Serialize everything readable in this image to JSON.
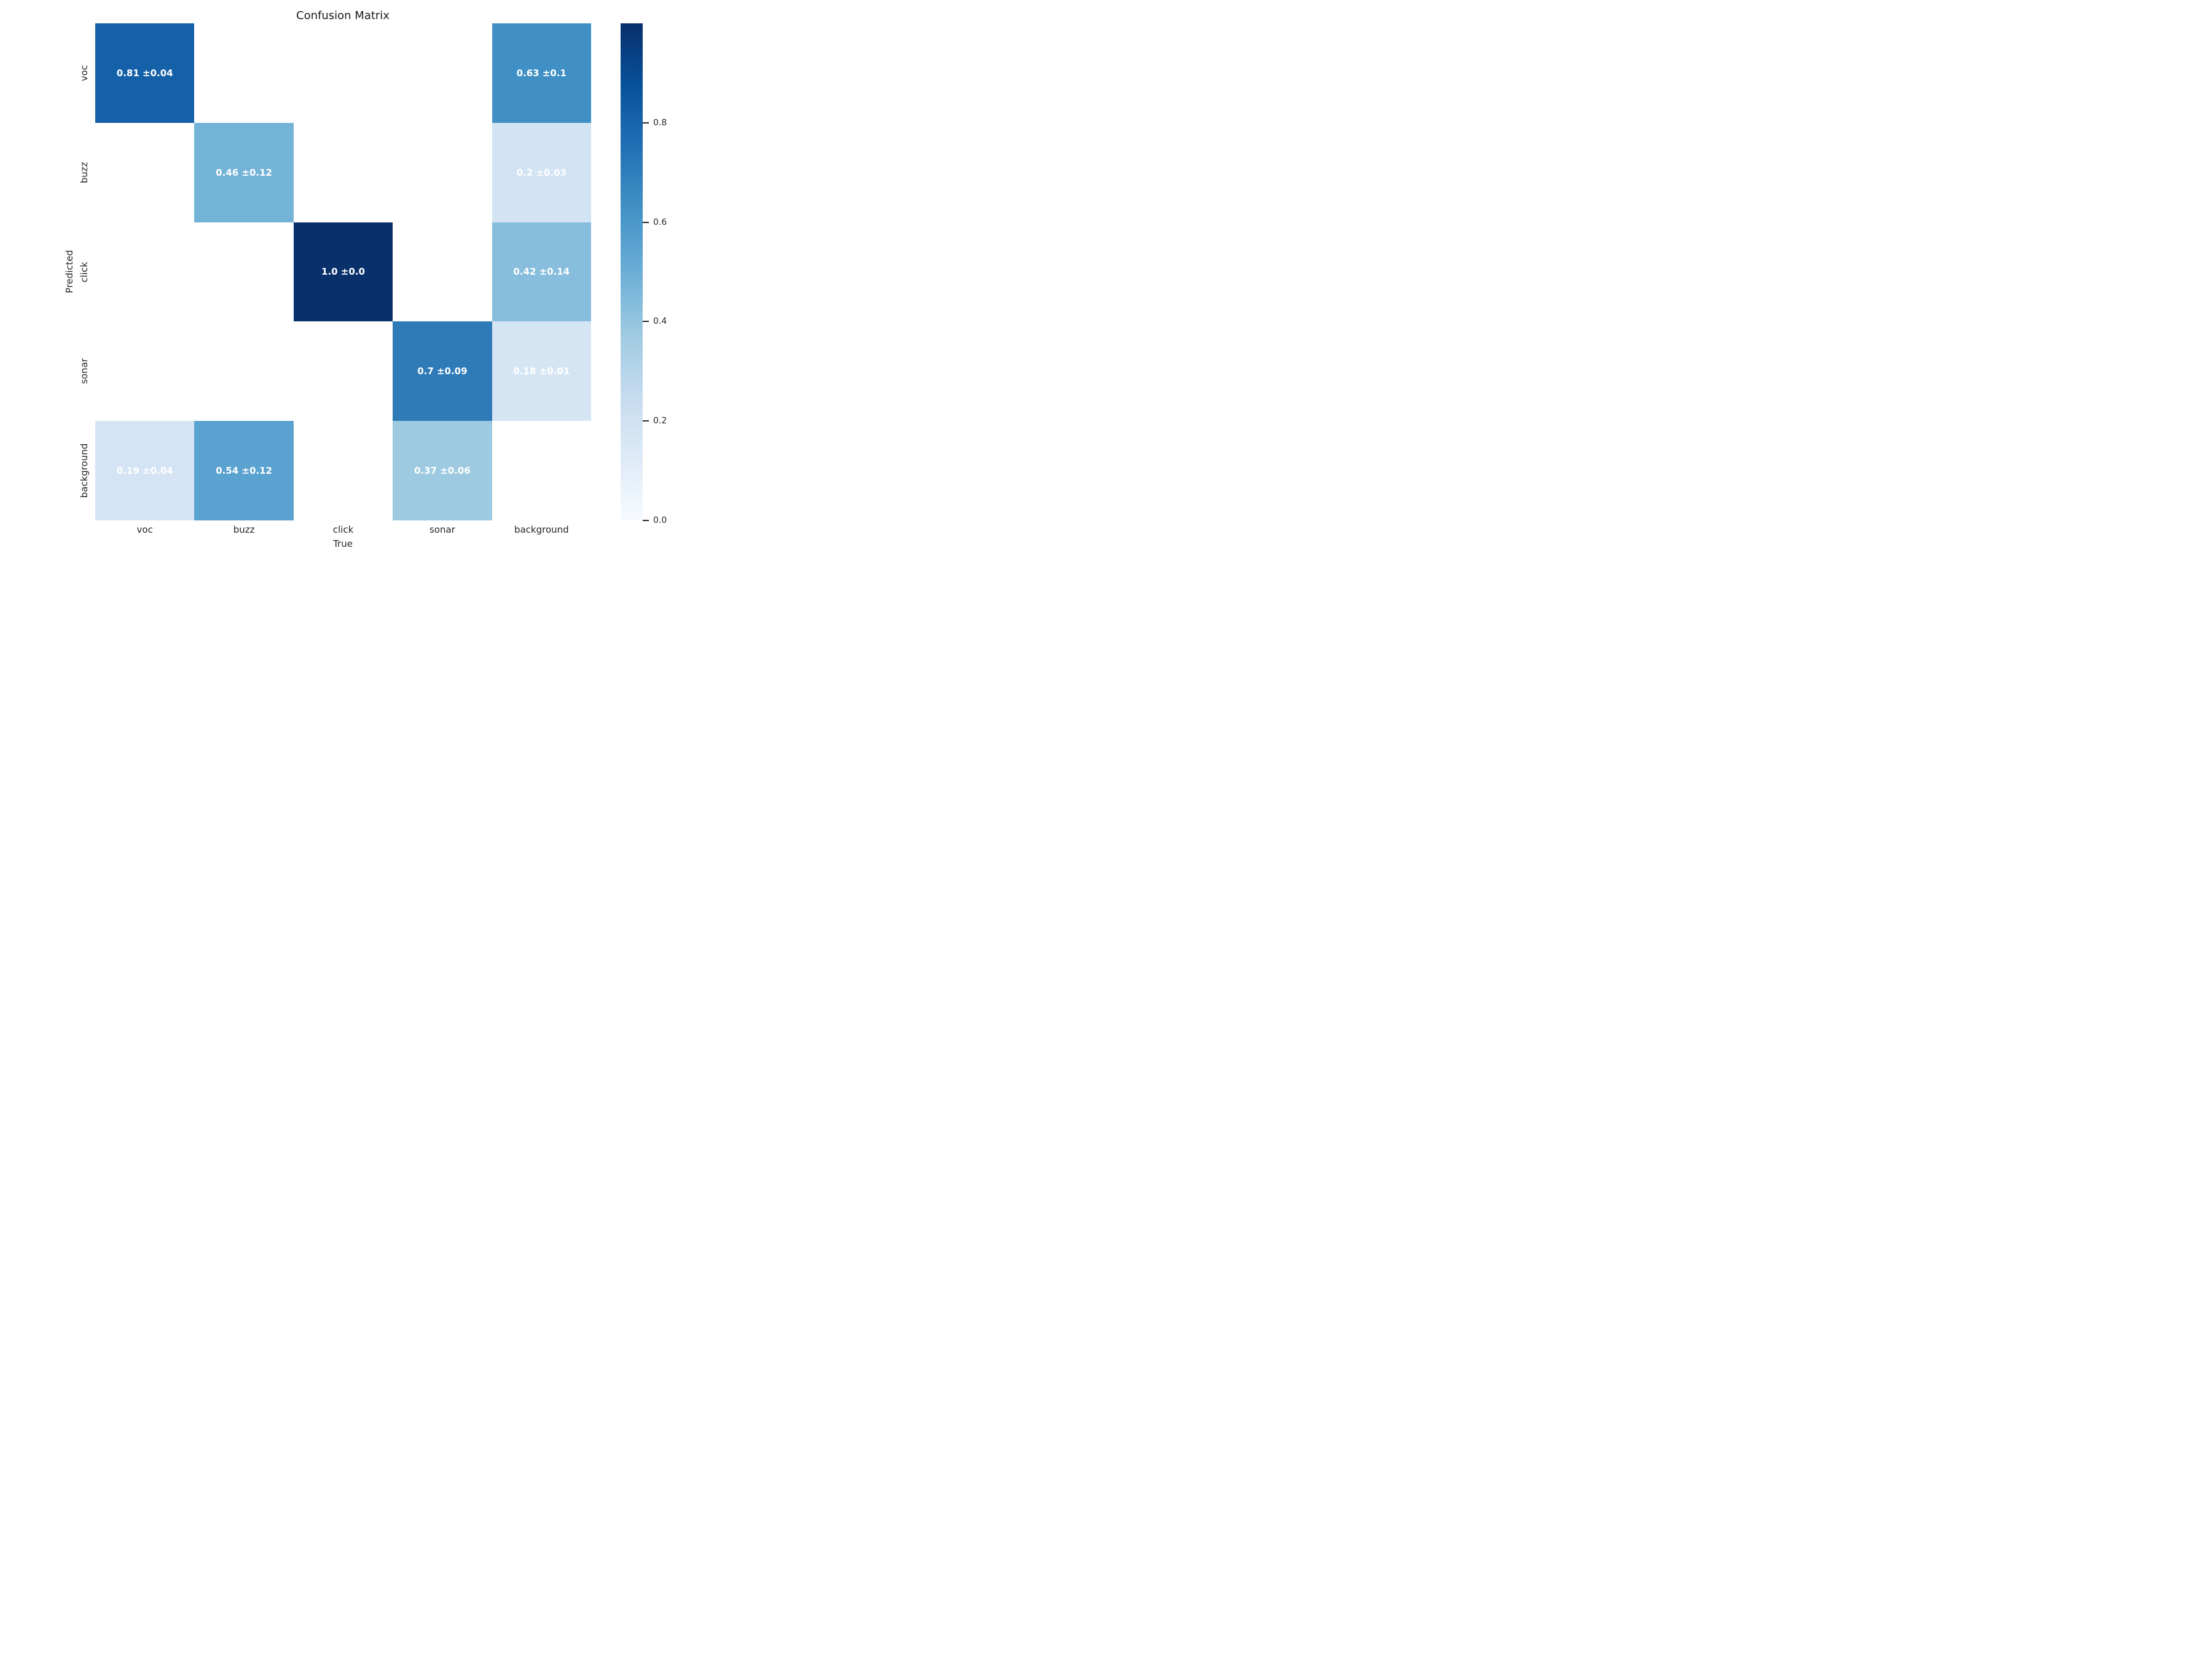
{
  "chart_data": {
    "type": "heatmap",
    "title": "Confusion Matrix",
    "xlabel": "True",
    "ylabel": "Predicted",
    "x_categories": [
      "voc",
      "buzz",
      "click",
      "sonar",
      "background"
    ],
    "y_categories": [
      "voc",
      "buzz",
      "click",
      "sonar",
      "background"
    ],
    "colormap": "Blues",
    "vmin": 0.0,
    "vmax": 1.0,
    "grid": false,
    "empty_cell_color": "#ffffff",
    "annotation_text_color": "#ffffff",
    "cells": [
      {
        "row": "voc",
        "col": "voc",
        "r": 0,
        "c": 0,
        "value": 0.81,
        "std": 0.04,
        "label": "0.81 ±0.04",
        "color": "#1561a9"
      },
      {
        "row": "voc",
        "col": "background",
        "r": 0,
        "c": 4,
        "value": 0.63,
        "std": 0.1,
        "label": "0.63 ±0.1",
        "color": "#4090c5"
      },
      {
        "row": "buzz",
        "col": "buzz",
        "r": 1,
        "c": 1,
        "value": 0.46,
        "std": 0.12,
        "label": "0.46 ±0.12",
        "color": "#74b3d8"
      },
      {
        "row": "buzz",
        "col": "background",
        "r": 1,
        "c": 4,
        "value": 0.2,
        "std": 0.03,
        "label": "0.2 ±0.03",
        "color": "#d2e3f3"
      },
      {
        "row": "click",
        "col": "click",
        "r": 2,
        "c": 2,
        "value": 1.0,
        "std": 0.0,
        "label": "1.0 ±0.0",
        "color": "#08306b"
      },
      {
        "row": "click",
        "col": "background",
        "r": 2,
        "c": 4,
        "value": 0.42,
        "std": 0.14,
        "label": "0.42 ±0.14",
        "color": "#88bedd"
      },
      {
        "row": "sonar",
        "col": "sonar",
        "r": 3,
        "c": 3,
        "value": 0.7,
        "std": 0.09,
        "label": "0.7 ±0.09",
        "color": "#2f7bb8"
      },
      {
        "row": "sonar",
        "col": "background",
        "r": 3,
        "c": 4,
        "value": 0.18,
        "std": 0.01,
        "label": "0.18 ±0.01",
        "color": "#d6e5f4"
      },
      {
        "row": "background",
        "col": "voc",
        "r": 4,
        "c": 0,
        "value": 0.19,
        "std": 0.04,
        "label": "0.19 ±0.04",
        "color": "#d4e4f4"
      },
      {
        "row": "background",
        "col": "buzz",
        "r": 4,
        "c": 1,
        "value": 0.54,
        "std": 0.12,
        "label": "0.54 ±0.12",
        "color": "#5aa2d0"
      },
      {
        "row": "background",
        "col": "sonar",
        "r": 4,
        "c": 3,
        "value": 0.37,
        "std": 0.06,
        "label": "0.37 ±0.06",
        "color": "#9dcae1"
      }
    ],
    "colorbar": {
      "tick_labels": [
        "0.8",
        "0.6",
        "0.4",
        "0.2",
        "0.0"
      ],
      "tick_values": [
        0.8,
        0.6,
        0.4,
        0.2,
        0.0
      ],
      "top_color": "#08306b",
      "bottom_color": "#f7fbff"
    }
  }
}
